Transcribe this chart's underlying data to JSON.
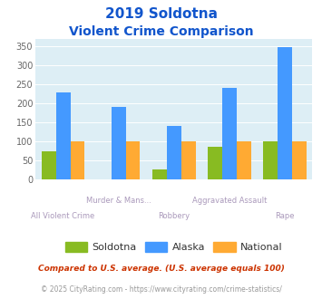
{
  "title_line1": "2019 Soldotna",
  "title_line2": "Violent Crime Comparison",
  "categories": [
    "All Violent Crime",
    "Murder & Mans...",
    "Robbery",
    "Aggravated Assault",
    "Rape"
  ],
  "soldotna": [
    75,
    0,
    27,
    85,
    100
  ],
  "alaska": [
    230,
    190,
    140,
    240,
    348
  ],
  "national": [
    100,
    100,
    100,
    100,
    100
  ],
  "color_soldotna": "#88bb22",
  "color_alaska": "#4499ff",
  "color_national": "#ffaa33",
  "color_bg": "#ddeef5",
  "ylim": [
    0,
    370
  ],
  "yticks": [
    0,
    50,
    100,
    150,
    200,
    250,
    300,
    350
  ],
  "title_color": "#1155cc",
  "footnote1": "Compared to U.S. average. (U.S. average equals 100)",
  "footnote2": "© 2025 CityRating.com - https://www.cityrating.com/crime-statistics/",
  "footnote1_color": "#cc3300",
  "footnote2_color": "#999999",
  "label_color": "#aa99bb",
  "url_color": "#4488cc"
}
